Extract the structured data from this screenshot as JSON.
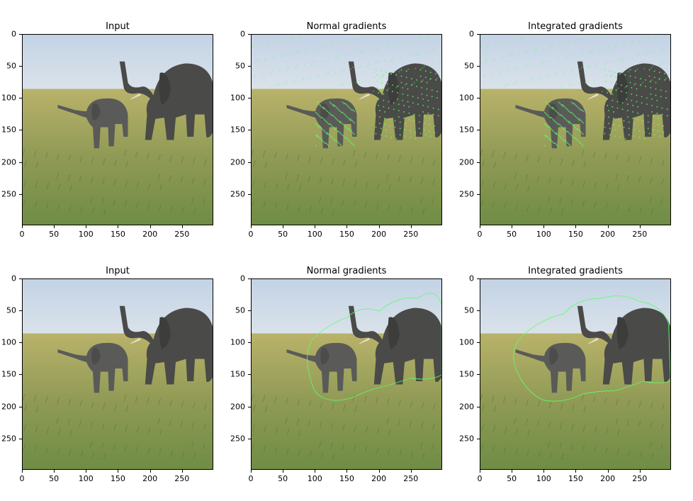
{
  "panels": [
    {
      "title": "Input",
      "overlay": "none"
    },
    {
      "title": "Normal gradients",
      "overlay": "dots"
    },
    {
      "title": "Integrated gradients",
      "overlay": "dots"
    },
    {
      "title": "Input",
      "overlay": "none"
    },
    {
      "title": "Normal gradients",
      "overlay": "contour"
    },
    {
      "title": "Integrated gradients",
      "overlay": "contour"
    }
  ],
  "axes": {
    "x_ticks": [
      "0",
      "50",
      "100",
      "150",
      "200",
      "250"
    ],
    "y_ticks": [
      "0",
      "50",
      "100",
      "150",
      "200",
      "250"
    ],
    "range": [
      0,
      299
    ]
  },
  "colors": {
    "sky": "#c9d8e6",
    "grass_far": "#b9b26a",
    "grass_near": "#6f8c45",
    "elephant": "#4a4a48",
    "highlight": "#5cff6a"
  }
}
